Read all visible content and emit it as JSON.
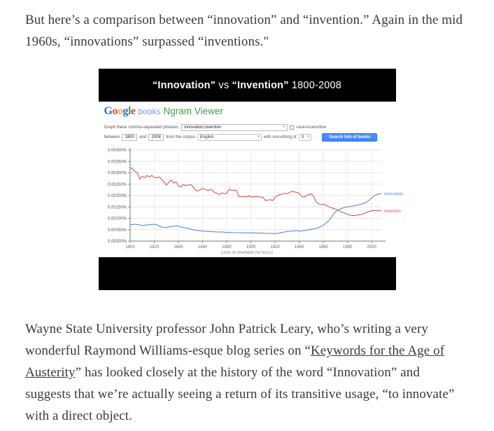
{
  "page": {
    "top_paragraph": "But here’s a comparison between “innovation” and “invention.” Again in the mid 1960s, “innovations” surpassed “inventions.\"",
    "bottom_paragraph": {
      "before_link": "Wayne State University professor John Patrick Leary, who’s writing a very wonderful Raymond Williams-esque blog series on “",
      "link_text": "Keywords for the Age of Austerity",
      "after_link": "” has looked closely at the history of the word “Innovation” and suggests that we’re actually seeing a return of its transitive usage, “to innovate” with a direct object."
    }
  },
  "figure": {
    "title_segments": [
      {
        "text": "“Innovation”",
        "bold": true
      },
      {
        "text": " vs ",
        "bold": false
      },
      {
        "text": "“Invention”",
        "bold": true
      },
      {
        "text": " 1800-2008",
        "bold": false
      }
    ],
    "ngram": {
      "logo_letters": [
        {
          "ch": "G",
          "color": "#2b6cd4"
        },
        {
          "ch": "o",
          "color": "#dc4a38"
        },
        {
          "ch": "o",
          "color": "#efb820"
        },
        {
          "ch": "g",
          "color": "#2b6cd4"
        },
        {
          "ch": "l",
          "color": "#3aa757"
        },
        {
          "ch": "e",
          "color": "#dc4a38"
        }
      ],
      "books_label": "books",
      "product_label": "Ngram Viewer",
      "form": {
        "row1_label": "Graph these comma-separated phrases:",
        "phrase_value": "innovation,invention",
        "case_insensitive_label": "case-insensitive",
        "between_label": "between",
        "year_from": "1800",
        "and_label": "and",
        "year_to": "2008",
        "corpus_label": "from the corpus",
        "corpus_value": "English",
        "smoothing_label": "with smoothing of",
        "smoothing_value": "3",
        "period": ".",
        "search_button_label": "Search lots of books"
      },
      "caption": "(click on line/label for focus)"
    }
  },
  "chart_data": {
    "type": "line",
    "title": "\"Innovation\" vs \"Invention\" 1800-2008",
    "xlabel": "",
    "ylabel": "",
    "xlim": [
      1800,
      2008
    ],
    "ylim": [
      0,
      0.004
    ],
    "grid": true,
    "legend_position": "line-end-labels",
    "x_ticks": [
      1800,
      1820,
      1840,
      1860,
      1880,
      1900,
      1920,
      1940,
      1960,
      1980,
      2000
    ],
    "y_tick_labels": [
      "0.00400%",
      "0.00350%",
      "0.00300%",
      "0.00250%",
      "0.00200%",
      "0.00150%",
      "0.00100%",
      "0.00050%",
      "0.00000%"
    ],
    "series": [
      {
        "name": "invention",
        "color": "#cc5a52",
        "points": [
          [
            1800,
            0.00322
          ],
          [
            1802,
            0.00318
          ],
          [
            1804,
            0.00305
          ],
          [
            1806,
            0.003
          ],
          [
            1808,
            0.00272
          ],
          [
            1810,
            0.00285
          ],
          [
            1812,
            0.00278
          ],
          [
            1814,
            0.00288
          ],
          [
            1816,
            0.00282
          ],
          [
            1818,
            0.00288
          ],
          [
            1820,
            0.0028
          ],
          [
            1822,
            0.00278
          ],
          [
            1824,
            0.00282
          ],
          [
            1826,
            0.0027
          ],
          [
            1828,
            0.00262
          ],
          [
            1830,
            0.00245
          ],
          [
            1832,
            0.00258
          ],
          [
            1834,
            0.00268
          ],
          [
            1836,
            0.00255
          ],
          [
            1838,
            0.0026
          ],
          [
            1840,
            0.00242
          ],
          [
            1842,
            0.00238
          ],
          [
            1844,
            0.00248
          ],
          [
            1846,
            0.00244
          ],
          [
            1848,
            0.00246
          ],
          [
            1850,
            0.00248
          ],
          [
            1852,
            0.0024
          ],
          [
            1854,
            0.00224
          ],
          [
            1856,
            0.0022
          ],
          [
            1858,
            0.00226
          ],
          [
            1860,
            0.0023
          ],
          [
            1862,
            0.00228
          ],
          [
            1864,
            0.00222
          ],
          [
            1866,
            0.00226
          ],
          [
            1868,
            0.00224
          ],
          [
            1870,
            0.00212
          ],
          [
            1872,
            0.0021
          ],
          [
            1874,
            0.00204
          ],
          [
            1876,
            0.00212
          ],
          [
            1878,
            0.00208
          ],
          [
            1880,
            0.0021
          ],
          [
            1882,
            0.00228
          ],
          [
            1884,
            0.00222
          ],
          [
            1886,
            0.00224
          ],
          [
            1888,
            0.00222
          ],
          [
            1890,
            0.00196
          ],
          [
            1892,
            0.00194
          ],
          [
            1894,
            0.00196
          ],
          [
            1896,
            0.00194
          ],
          [
            1898,
            0.00198
          ],
          [
            1900,
            0.00196
          ],
          [
            1902,
            0.00193
          ],
          [
            1904,
            0.00196
          ],
          [
            1906,
            0.00194
          ],
          [
            1908,
            0.00193
          ],
          [
            1910,
            0.00192
          ],
          [
            1912,
            0.00178
          ],
          [
            1914,
            0.0018
          ],
          [
            1916,
            0.00182
          ],
          [
            1918,
            0.00178
          ],
          [
            1920,
            0.00192
          ],
          [
            1922,
            0.002
          ],
          [
            1924,
            0.00204
          ],
          [
            1926,
            0.00206
          ],
          [
            1928,
            0.0021
          ],
          [
            1930,
            0.00208
          ],
          [
            1932,
            0.00214
          ],
          [
            1934,
            0.00218
          ],
          [
            1936,
            0.00216
          ],
          [
            1938,
            0.00214
          ],
          [
            1940,
            0.0021
          ],
          [
            1942,
            0.00196
          ],
          [
            1944,
            0.00192
          ],
          [
            1946,
            0.002
          ],
          [
            1948,
            0.00204
          ],
          [
            1950,
            0.00207
          ],
          [
            1952,
            0.00196
          ],
          [
            1954,
            0.00172
          ],
          [
            1956,
            0.00164
          ],
          [
            1958,
            0.0016
          ],
          [
            1960,
            0.00162
          ],
          [
            1962,
            0.00158
          ],
          [
            1964,
            0.00152
          ],
          [
            1966,
            0.00148
          ],
          [
            1968,
            0.00144
          ],
          [
            1970,
            0.0014
          ],
          [
            1972,
            0.00136
          ],
          [
            1974,
            0.0013
          ],
          [
            1976,
            0.00126
          ],
          [
            1978,
            0.00122
          ],
          [
            1980,
            0.00118
          ],
          [
            1982,
            0.00114
          ],
          [
            1984,
            0.00112
          ],
          [
            1986,
            0.00112
          ],
          [
            1988,
            0.00114
          ],
          [
            1990,
            0.00116
          ],
          [
            1992,
            0.00118
          ],
          [
            1994,
            0.00122
          ],
          [
            1996,
            0.00126
          ],
          [
            1998,
            0.0013
          ],
          [
            2000,
            0.00133
          ],
          [
            2002,
            0.00135
          ],
          [
            2004,
            0.00133
          ],
          [
            2006,
            0.00134
          ],
          [
            2008,
            0.00133
          ]
        ]
      },
      {
        "name": "innovation",
        "color": "#5b87d9",
        "points": [
          [
            1800,
            0.00072
          ],
          [
            1802,
            0.00073
          ],
          [
            1804,
            0.00074
          ],
          [
            1806,
            0.00073
          ],
          [
            1808,
            0.00071
          ],
          [
            1810,
            0.00068
          ],
          [
            1812,
            0.0007
          ],
          [
            1814,
            0.00071
          ],
          [
            1816,
            0.00072
          ],
          [
            1818,
            0.00073
          ],
          [
            1820,
            0.00074
          ],
          [
            1822,
            0.00072
          ],
          [
            1824,
            0.00066
          ],
          [
            1826,
            0.00062
          ],
          [
            1828,
            0.0006
          ],
          [
            1830,
            0.00059
          ],
          [
            1832,
            0.00062
          ],
          [
            1834,
            0.00064
          ],
          [
            1836,
            0.00065
          ],
          [
            1838,
            0.00067
          ],
          [
            1840,
            0.00066
          ],
          [
            1842,
            0.00062
          ],
          [
            1844,
            0.0006
          ],
          [
            1846,
            0.00058
          ],
          [
            1848,
            0.00056
          ],
          [
            1850,
            0.00053
          ],
          [
            1852,
            0.0005
          ],
          [
            1854,
            0.00048
          ],
          [
            1856,
            0.00046
          ],
          [
            1858,
            0.00045
          ],
          [
            1860,
            0.00044
          ],
          [
            1862,
            0.00043
          ],
          [
            1864,
            0.00042
          ],
          [
            1866,
            0.00042
          ],
          [
            1868,
            0.00041
          ],
          [
            1870,
            0.00041
          ],
          [
            1872,
            0.0004
          ],
          [
            1874,
            0.0004
          ],
          [
            1876,
            0.0004
          ],
          [
            1878,
            0.00039
          ],
          [
            1880,
            0.00038
          ],
          [
            1882,
            0.00038
          ],
          [
            1884,
            0.00037
          ],
          [
            1886,
            0.00037
          ],
          [
            1888,
            0.00037
          ],
          [
            1890,
            0.00037
          ],
          [
            1892,
            0.00036
          ],
          [
            1894,
            0.00036
          ],
          [
            1896,
            0.00036
          ],
          [
            1898,
            0.00036
          ],
          [
            1900,
            0.00036
          ],
          [
            1902,
            0.00036
          ],
          [
            1904,
            0.00036
          ],
          [
            1906,
            0.00035
          ],
          [
            1908,
            0.00035
          ],
          [
            1910,
            0.00035
          ],
          [
            1912,
            0.00034
          ],
          [
            1914,
            0.00034
          ],
          [
            1916,
            0.00034
          ],
          [
            1918,
            0.00033
          ],
          [
            1920,
            0.00033
          ],
          [
            1922,
            0.00034
          ],
          [
            1924,
            0.00036
          ],
          [
            1926,
            0.00038
          ],
          [
            1928,
            0.0004
          ],
          [
            1930,
            0.00042
          ],
          [
            1932,
            0.00043
          ],
          [
            1934,
            0.00044
          ],
          [
            1936,
            0.00045
          ],
          [
            1938,
            0.00046
          ],
          [
            1940,
            0.00044
          ],
          [
            1942,
            0.00044
          ],
          [
            1944,
            0.00046
          ],
          [
            1946,
            0.00048
          ],
          [
            1948,
            0.0005
          ],
          [
            1950,
            0.00052
          ],
          [
            1952,
            0.00054
          ],
          [
            1954,
            0.00056
          ],
          [
            1956,
            0.0006
          ],
          [
            1958,
            0.00064
          ],
          [
            1960,
            0.0007
          ],
          [
            1962,
            0.00078
          ],
          [
            1964,
            0.00088
          ],
          [
            1966,
            0.001
          ],
          [
            1968,
            0.00115
          ],
          [
            1970,
            0.00128
          ],
          [
            1972,
            0.00136
          ],
          [
            1974,
            0.00141
          ],
          [
            1976,
            0.00145
          ],
          [
            1978,
            0.00148
          ],
          [
            1980,
            0.0015
          ],
          [
            1982,
            0.00152
          ],
          [
            1984,
            0.00154
          ],
          [
            1986,
            0.00156
          ],
          [
            1988,
            0.00158
          ],
          [
            1990,
            0.0016
          ],
          [
            1992,
            0.00163
          ],
          [
            1994,
            0.00166
          ],
          [
            1996,
            0.00172
          ],
          [
            1998,
            0.0018
          ],
          [
            2000,
            0.0019
          ],
          [
            2002,
            0.00198
          ],
          [
            2004,
            0.00204
          ],
          [
            2006,
            0.00207
          ],
          [
            2008,
            0.00208
          ]
        ]
      }
    ]
  }
}
